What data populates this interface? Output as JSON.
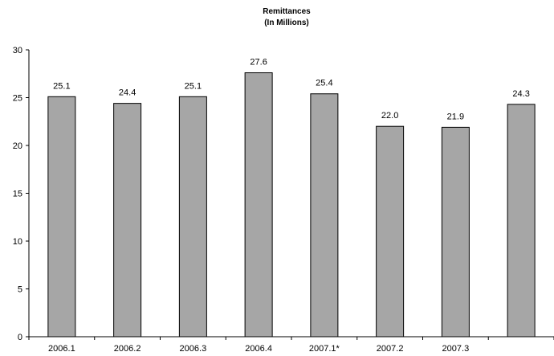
{
  "chart_data": {
    "type": "bar",
    "title": "Remittances",
    "subtitle": "(In Millions)",
    "xlabel": "",
    "ylabel": "",
    "categories": [
      "2006.1",
      "2006.2",
      "2006.3",
      "2006.4",
      "2007.1*",
      "2007.2",
      "2007.3",
      ""
    ],
    "values": [
      25.1,
      24.4,
      25.1,
      27.6,
      25.4,
      22.0,
      21.9,
      24.3
    ],
    "data_labels": [
      "25.1",
      "24.4",
      "25.1",
      "27.6",
      "25.4",
      "22.0",
      "21.9",
      "24.3"
    ],
    "ylim": [
      0,
      30
    ],
    "yticks": [
      0,
      5,
      10,
      15,
      20,
      25,
      30
    ],
    "grid": false,
    "legend": "none",
    "colors": {
      "bar_fill": "#a6a6a6",
      "bar_stroke": "#000000",
      "axis": "#000000",
      "background": "#ffffff"
    }
  }
}
